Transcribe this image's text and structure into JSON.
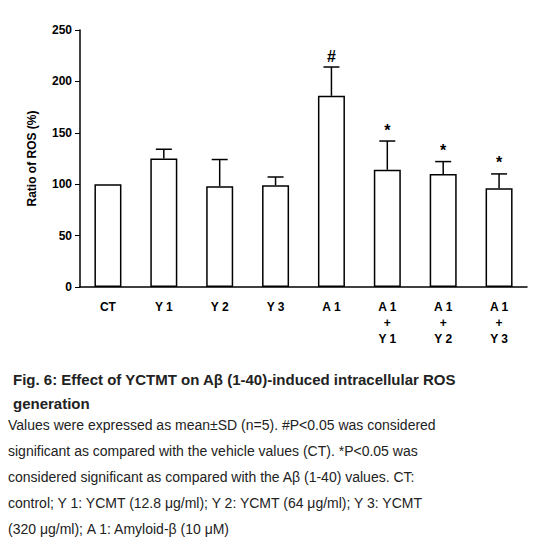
{
  "chart_data": {
    "type": "bar",
    "title": "Fig. 6: Effect of YCTMT on Aβ (1-40)-induced intracellular ROS generation",
    "note": "Values were expressed as mean±SD (n=5). #P<0.05 was considered significant as compared with the vehicle values (CT). *P<0.05 was considered significant as compared with the Aβ (1-40) values. CT: control; Y 1: YCMT (12.8 μg/ml); Y 2: YCMT (64 μg/ml); Y 3: YCMT (320 μg/ml); A 1: Amyloid-β (10 μM)",
    "y_label": "Ratio of ROS (%)",
    "categories": [
      "CT",
      "Y 1",
      "Y 2",
      "Y 3",
      "A 1",
      "A 1\n+\nY 1",
      "A 1\n+\nY 2",
      "A 1\n+\nY 3"
    ],
    "values": [
      100,
      125,
      98,
      99,
      186,
      114,
      110,
      96
    ],
    "errors": [
      null,
      9,
      26,
      8,
      28,
      28,
      12,
      14
    ],
    "significance": [
      null,
      null,
      null,
      null,
      "#",
      "*",
      "*",
      "*"
    ],
    "color": "#ffffff",
    "ylim": [
      0,
      250
    ],
    "yticks": [
      0,
      50,
      100,
      150,
      200,
      250
    ],
    "grid": false
  }
}
